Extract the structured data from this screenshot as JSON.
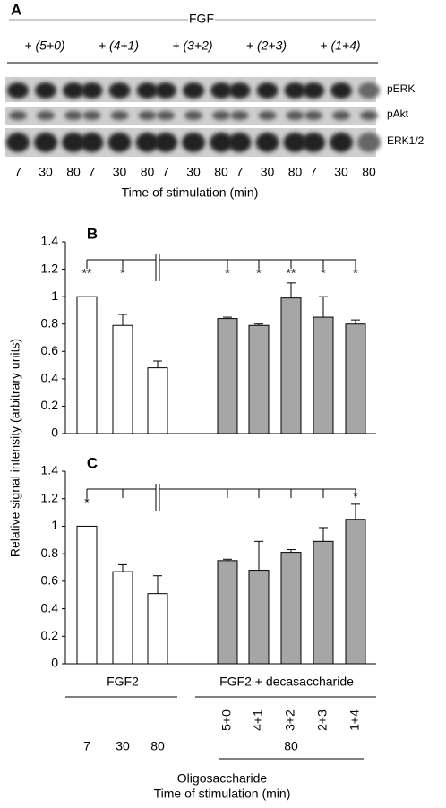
{
  "panel_a": {
    "label": "A",
    "treatment": "FGF",
    "conditions": [
      "+ (5+0)",
      "+ (4+1)",
      "+ (3+2)",
      "+ (2+3)",
      "+ (1+4)"
    ],
    "bands": [
      "pERK",
      "pAkt",
      "ERK1/2"
    ],
    "times": [
      "7",
      "30",
      "80"
    ],
    "x_title": "Time of stimulation (min)"
  },
  "y_title": "Relative signal intensity (arbitrary units)",
  "chart_data": [
    {
      "type": "bar",
      "panel_label": "B",
      "values": [
        1,
        0.79,
        0.48,
        null,
        0.84,
        0.79,
        0.99,
        0.85,
        0.8
      ],
      "errors": [
        null,
        0.08,
        0.05,
        null,
        0.01,
        0.01,
        0.11,
        0.15,
        0.03
      ],
      "colors": [
        "#ffffff",
        "#ffffff",
        "#ffffff",
        null,
        "#a6a6a6",
        "#a6a6a6",
        "#a6a6a6",
        "#a6a6a6",
        "#a6a6a6"
      ],
      "significance": [
        "**",
        "*",
        null,
        null,
        "*",
        "*",
        "**",
        "*",
        "*"
      ],
      "ylim": [
        0,
        1.4
      ],
      "yticks": [
        0,
        0.2,
        0.4,
        0.6,
        0.8,
        1,
        1.2,
        1.4
      ]
    },
    {
      "type": "bar",
      "panel_label": "C",
      "values": [
        1,
        0.67,
        0.51,
        null,
        0.75,
        0.68,
        0.81,
        0.89,
        1.05
      ],
      "errors": [
        null,
        0.05,
        0.13,
        null,
        0.01,
        0.21,
        0.02,
        0.1,
        0.11
      ],
      "colors": [
        "#ffffff",
        "#ffffff",
        "#ffffff",
        null,
        "#a6a6a6",
        "#a6a6a6",
        "#a6a6a6",
        "#a6a6a6",
        "#a6a6a6"
      ],
      "significance": [
        "*",
        null,
        null,
        null,
        null,
        null,
        null,
        null,
        "*"
      ],
      "ylim": [
        0,
        1.4
      ],
      "yticks": [
        0,
        0.2,
        0.4,
        0.6,
        0.8,
        1,
        1.2,
        1.4
      ]
    }
  ],
  "x_labels": {
    "groups": [
      "FGF2",
      "FGF2 + decasaccharide"
    ],
    "oligosaccharides": [
      "5+0",
      "4+1",
      "3+2",
      "2+3",
      "1+4"
    ],
    "times": [
      "7",
      "30",
      "80"
    ],
    "decasaccharide_time": "80",
    "row_titles": [
      "Oligosaccharide",
      "Time of stimulation (min)"
    ]
  }
}
